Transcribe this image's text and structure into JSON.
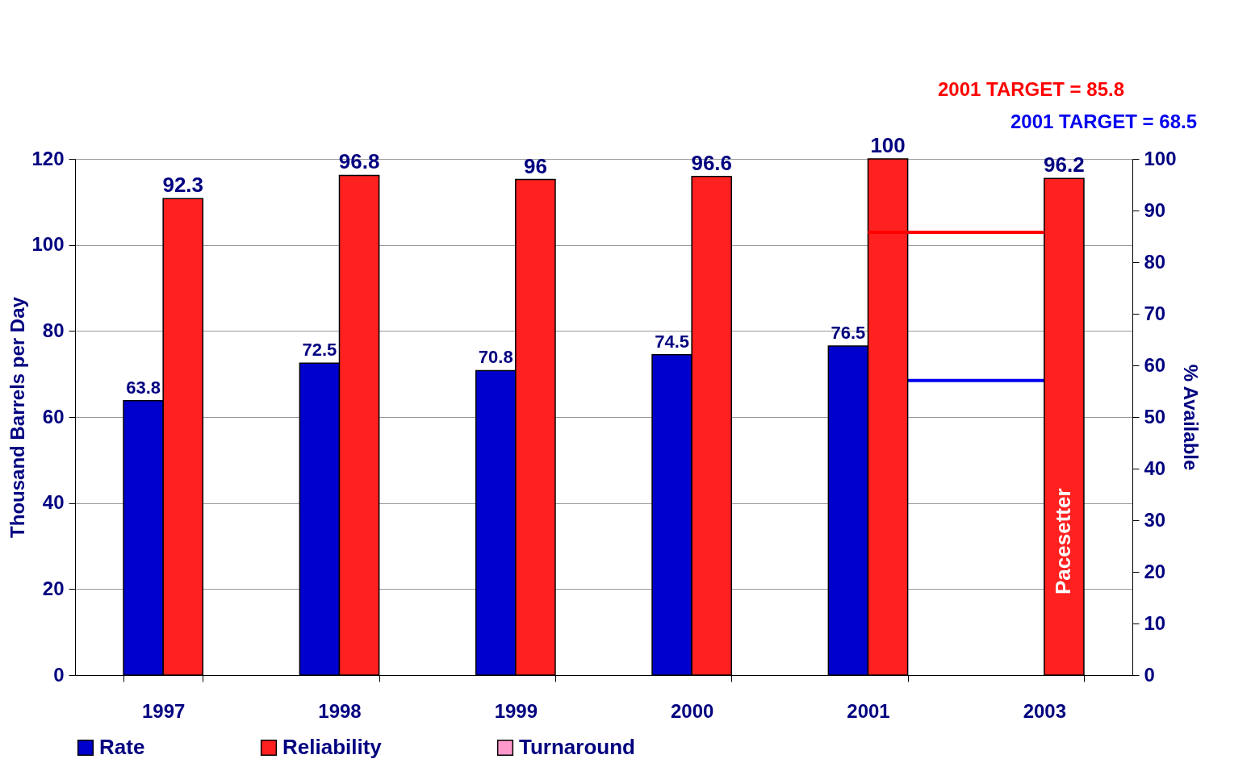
{
  "chart_data": {
    "type": "bar",
    "categories": [
      "1997",
      "1998",
      "1999",
      "2000",
      "2001",
      "2003"
    ],
    "ylabel": "Thousand Barrels per Day",
    "y2label": "% Available",
    "series": [
      {
        "name": "Rate",
        "color": "#0000cc",
        "values": [
          63.8,
          72.5,
          70.8,
          74.5,
          76.5,
          null
        ]
      },
      {
        "name": "Reliability",
        "color": "#ff2020",
        "axis": "y2",
        "values": [
          92.3,
          96.8,
          96,
          96.6,
          100,
          96.2
        ]
      },
      {
        "name": "Turnaround",
        "color": "#ff99cc",
        "axis": "y2",
        "values": [
          null,
          null,
          null,
          null,
          null,
          null
        ]
      }
    ],
    "ylim": [
      0,
      120
    ],
    "yticks": [
      0,
      20,
      40,
      60,
      80,
      100,
      120
    ],
    "y2lim": [
      0,
      100
    ],
    "y2ticks": [
      0,
      10,
      20,
      30,
      40,
      50,
      60,
      70,
      80,
      90,
      100
    ],
    "ref_lines": [
      {
        "axis": "y2",
        "value": 85.8,
        "label": "2001 TARGET = 85.8",
        "color": "#ff0000"
      },
      {
        "axis": "y",
        "value": 68.5,
        "label": "2001 TARGET = 68.5",
        "color": "#0000ee"
      }
    ],
    "annotations": [
      "Pacesetter"
    ],
    "data_labels": true,
    "grid": "y",
    "legend": "bottom"
  }
}
